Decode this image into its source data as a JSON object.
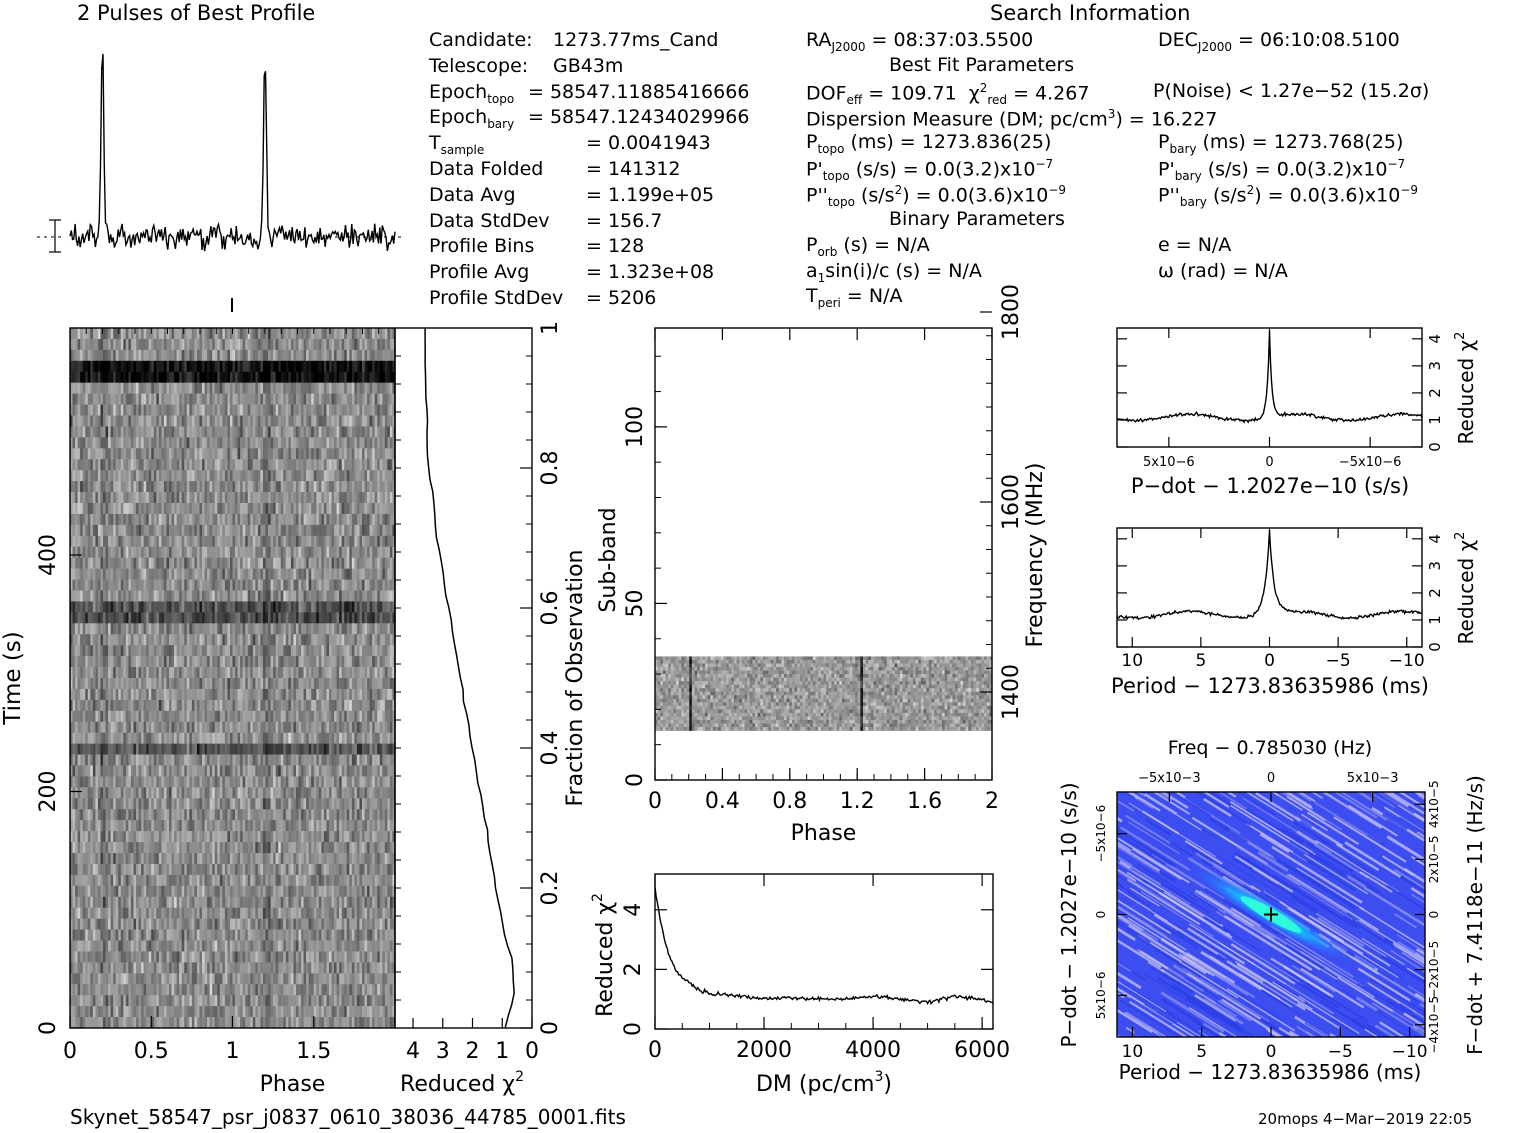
{
  "header": {
    "profile_title": "2 Pulses of Best Profile",
    "search_title": "Search Information",
    "best_fit_title": "Best Fit Parameters",
    "binary_title": "Binary Parameters"
  },
  "candidate_info": [
    {
      "label": "Candidate:",
      "value": "1273.77ms_Cand"
    },
    {
      "label": "Telescope:",
      "value": "GB43m"
    },
    {
      "label": "Epoch",
      "sub": "topo",
      "value": "= 58547.11885416666"
    },
    {
      "label": "Epoch",
      "sub": "bary",
      "value": "= 58547.12434029966"
    },
    {
      "label": "T",
      "sub": "sample",
      "value": "=   0.0041943"
    },
    {
      "label": "Data Folded",
      "value": "=   141312"
    },
    {
      "label": "Data Avg",
      "value": "=   1.199e+05"
    },
    {
      "label": "Data StdDev",
      "value": "=   156.7"
    },
    {
      "label": "Profile Bins",
      "value": "=   128"
    },
    {
      "label": "Profile Avg",
      "value": "=   1.323e+08"
    },
    {
      "label": "Profile StdDev",
      "value": "=   5206"
    }
  ],
  "search_info": {
    "ra": "RA",
    "ra_sub": "J2000",
    "ra_value": " = 08:37:03.5500",
    "dec": "DEC",
    "dec_sub": "J2000",
    "dec_value": " = 06:10:08.5100",
    "dof": "DOF",
    "dof_sub": "eff",
    "dof_value": " = 109.71",
    "chi": "χ",
    "chi_sup": "2",
    "chi_sub": "red",
    "chi_value": " = 4.267",
    "pnoise": "P(Noise) < 1.27e−52   (15.2σ)",
    "dm_text": "Dispersion Measure (DM; pc/cm",
    "dm_sup": "3",
    "dm_value": ") = 16.227",
    "ptopo": "P",
    "ptopo_sub": "topo",
    "ptopo_value": " (ms) =   1273.836(25)",
    "pbary": "P",
    "pbary_sub": "bary",
    "pbary_value": " (ms) =   1273.768(25)",
    "pdtopo": "P'",
    "pdtopo_sub": "topo",
    "pdtopo_value": " (s/s) = 0.0(3.2)x10",
    "pdtopo_sup": "−7",
    "pdbary": "P'",
    "pdbary_sub": "bary",
    "pdbary_value": " (s/s) = 0.0(3.2)x10",
    "pdbary_sup": "−7",
    "pddtopo": "P''",
    "pddtopo_sub": "topo",
    "pddtopo_value": " (s/s",
    "pddtopo_value_sup": "2",
    "pddtopo_value2": ") = 0.0(3.6)x10",
    "pddtopo_sup": "−9",
    "pddbary": "P''",
    "pddbary_sub": "bary",
    "pddbary_value": " (s/s",
    "pddbary_value_sup": "2",
    "pddbary_value2": ") = 0.0(3.6)x10",
    "pddbary_sup": "−9",
    "porb": "P",
    "porb_sub": "orb",
    "porb_value": " (s) = N/A",
    "ecc": "e = N/A",
    "a1": "a",
    "a1_sub": "1",
    "a1_value": "sin(i)/c (s) = N/A",
    "omega": "ω (rad) = N/A",
    "tperi": "T",
    "tperi_sub": "peri",
    "tperi_value": " = N/A"
  },
  "axes": {
    "time_label": "Time (s)",
    "phase_label": "Phase",
    "redchi_label": "Reduced χ",
    "redchi_sup": "2",
    "frac_obs_label": "Fraction of Observation",
    "subband_label": "Sub-band",
    "frequency_label": "Frequency (MHz)",
    "dm_label": "DM (pc/cm",
    "dm_label_sup": "3",
    "dm_label_end": ")",
    "pdot_label": "P−dot − 1.2027e−10 (s/s)",
    "period_label": "Period − 1273.83635986 (ms)",
    "freq_label": "Freq − 0.785030 (Hz)",
    "pdot_vert_label": "P−dot − 1.2027e−10 (s/s)",
    "fdot_vert_label": "F−dot + 7.4118e−11 (Hz/s)"
  },
  "footer": {
    "filename": "Skynet_58547_psr_j0837_0610_38036_44785_0001.fits",
    "stamp": "20mops   4−Mar−2019 22:05"
  },
  "chart_data": [
    {
      "type": "line",
      "title": "2 Pulses of Best Profile",
      "x_range": [
        0,
        2
      ],
      "pulse_phases": [
        0.2,
        1.2
      ],
      "note_values": "profile peaks near phase 0.2 and 1.2"
    },
    {
      "type": "heatmap",
      "xlabel": "Phase",
      "ylabel": "Time (s)",
      "x_ticks": [
        "0",
        "0.5",
        "1",
        "1.5"
      ],
      "y_ticks": [
        "0",
        "200",
        "400"
      ],
      "xlim": [
        0,
        2
      ],
      "ylim": [
        0,
        592
      ]
    },
    {
      "type": "line",
      "xlabel": "Reduced χ2",
      "ylabel": "Fraction of Observation",
      "x_ticks": [
        "4",
        "3",
        "2",
        "1",
        "0"
      ],
      "y_ticks": [
        "0",
        "0.2",
        "0.4",
        "0.6",
        "0.8",
        "1"
      ],
      "x": [
        0.9,
        0.6,
        0.7,
        1.0,
        1.2,
        1.4,
        1.6,
        1.8,
        2.0,
        2.2,
        2.4,
        2.6,
        2.8,
        3.0,
        3.2,
        3.3,
        3.5,
        3.6
      ],
      "y": [
        0.0,
        0.05,
        0.1,
        0.15,
        0.2,
        0.25,
        0.3,
        0.35,
        0.4,
        0.45,
        0.5,
        0.55,
        0.6,
        0.65,
        0.7,
        0.75,
        0.8,
        1.0
      ]
    },
    {
      "type": "heatmap",
      "xlabel": "Phase",
      "ylabel": "Sub-band",
      "y2label": "Frequency (MHz)",
      "x_ticks": [
        "0",
        "0.4",
        "0.8",
        "1.2",
        "1.6",
        "2"
      ],
      "y_ticks": [
        "0",
        "50",
        "100"
      ],
      "y2_ticks": [
        "1400",
        "1600",
        "1800"
      ],
      "xlim": [
        0,
        2
      ],
      "ylim": [
        0,
        128
      ],
      "data_band": [
        14,
        35
      ]
    },
    {
      "type": "line",
      "xlabel": "DM (pc/cm3)",
      "ylabel": "Reduced χ2",
      "x_ticks": [
        "0",
        "2000",
        "4000",
        "6000"
      ],
      "y_ticks": [
        "0",
        "2",
        "4"
      ],
      "xlim": [
        0,
        6200
      ],
      "ylim": [
        0,
        5.2
      ],
      "x": [
        0,
        100,
        200,
        300,
        400,
        600,
        800,
        1000,
        1500,
        2000,
        2500,
        3000,
        3500,
        4000,
        4500,
        5000,
        5500,
        6000,
        6200
      ],
      "y": [
        4.7,
        3.6,
        2.8,
        2.3,
        1.9,
        1.6,
        1.3,
        1.2,
        1.1,
        1.0,
        1.05,
        1.0,
        1.0,
        1.1,
        1.0,
        0.9,
        1.1,
        1.0,
        0.9
      ]
    },
    {
      "type": "line",
      "xlabel": "P−dot − 1.2027e−10 (s/s)",
      "ylabel": "Reduced χ2",
      "x_ticks": [
        "5x10−6",
        "0",
        "−5x10−6"
      ],
      "y_ticks": [
        "0",
        "1",
        "2",
        "3",
        "4"
      ],
      "peak_x": 0,
      "peak_y": 4.267,
      "baseline_y": 1.1
    },
    {
      "type": "line",
      "xlabel": "Period − 1273.83635986 (ms)",
      "ylabel": "Reduced χ2",
      "x_ticks": [
        "10",
        "5",
        "0",
        "−5",
        "−10"
      ],
      "y_ticks": [
        "0",
        "1",
        "2",
        "3",
        "4"
      ],
      "peak_x": 0,
      "peak_y": 4.267,
      "baseline_y": 1.2
    },
    {
      "type": "heatmap",
      "title": "Freq − 0.785030 (Hz)",
      "xlabel": "Period − 1273.83635986 (ms)",
      "ylabel": "P−dot − 1.2027e−10 (s/s)",
      "y2label": "F−dot + 7.4118e−11 (Hz/s)",
      "x_ticks": [
        "10",
        "5",
        "0",
        "−5",
        "−10"
      ],
      "top_ticks": [
        "−5x10−3",
        "0",
        "5x10−3"
      ],
      "y_ticks": [
        "5x10−6",
        "0",
        "−5x10−6"
      ],
      "y2_ticks": [
        "−4x10−5",
        "−2x10−5",
        "0",
        "2x10−5",
        "4x10−5"
      ],
      "peak": [
        0,
        0
      ]
    }
  ]
}
